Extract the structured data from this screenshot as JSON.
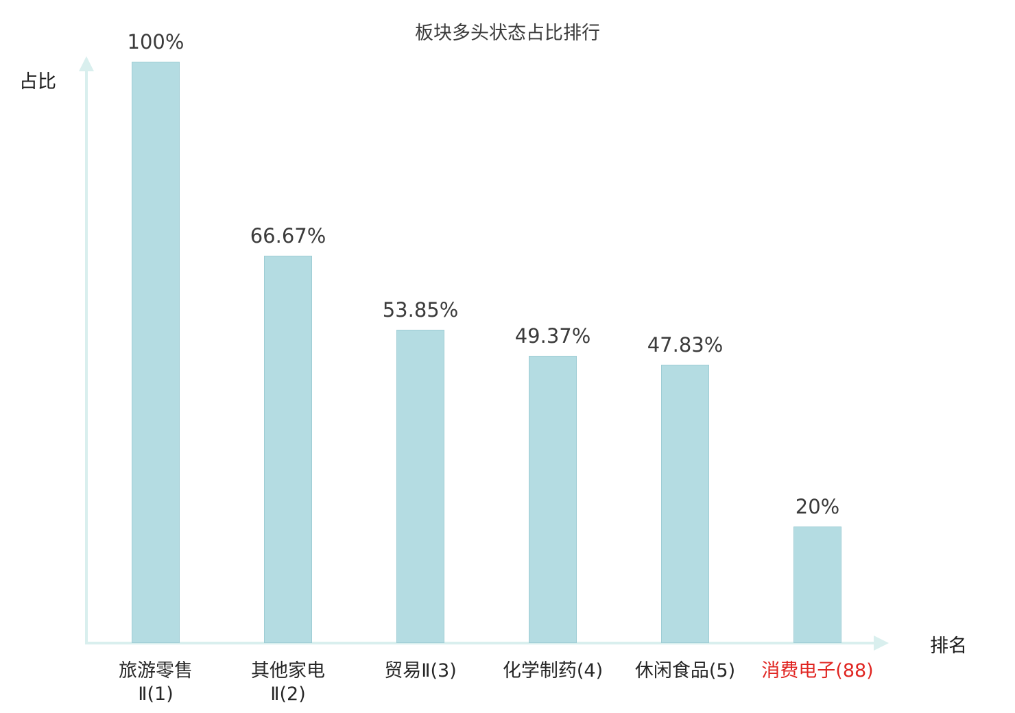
{
  "chart_data": {
    "type": "bar",
    "title": "板块多头状态占比排行",
    "xlabel": "排名",
    "ylabel": "占比",
    "categories": [
      "旅游零售Ⅱ(1)",
      "其他家电Ⅱ(2)",
      "贸易Ⅱ(3)",
      "化学制药(4)",
      "休闲食品(5)",
      "消费电子(88)"
    ],
    "category_lines": [
      [
        "旅游零售",
        "Ⅱ(1)"
      ],
      [
        "其他家电",
        "Ⅱ(2)"
      ],
      [
        "贸易Ⅱ(3)"
      ],
      [
        "化学制药(4)"
      ],
      [
        "休闲食品(5)"
      ],
      [
        "消费电子(88)"
      ]
    ],
    "values": [
      100,
      66.67,
      53.85,
      49.37,
      47.83,
      20
    ],
    "value_labels": [
      "100%",
      "66.67%",
      "53.85%",
      "49.37%",
      "47.83%",
      "20%"
    ],
    "highlight_index": 5,
    "ylim": [
      0,
      100
    ],
    "grid": false,
    "legend": false
  },
  "colors": {
    "bar_fill": "#b4dce2",
    "bar_stroke": "#9dccd4",
    "axis": "#d9efee",
    "text": "#3b3b3b",
    "highlight_text": "#e02420",
    "background": "#ffffff"
  }
}
